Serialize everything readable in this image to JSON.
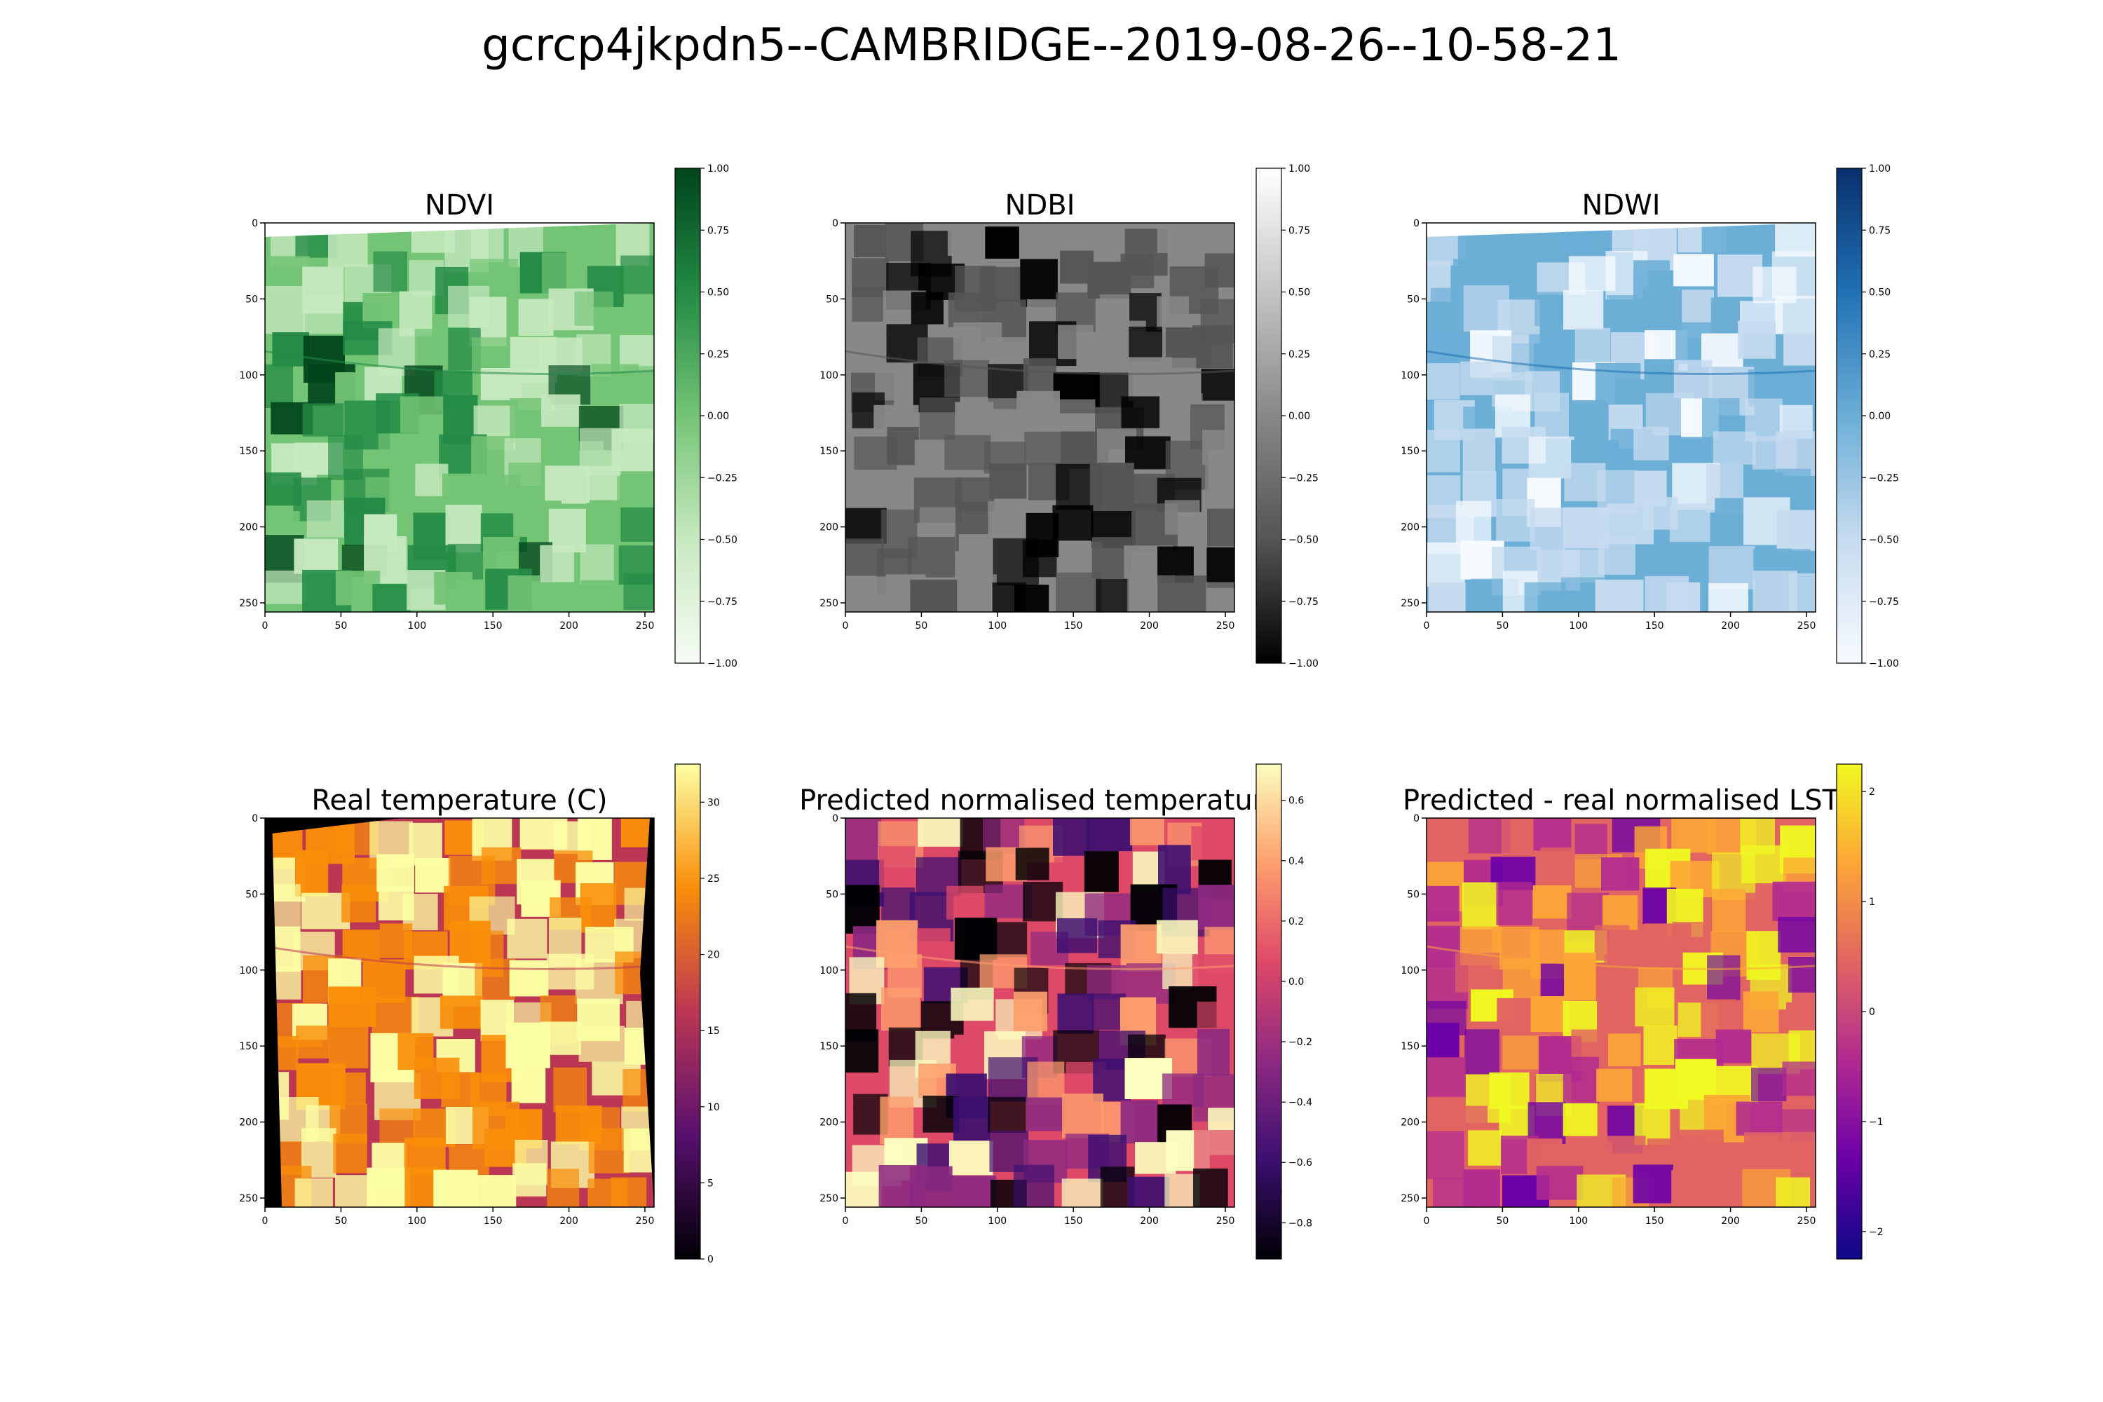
{
  "figure": {
    "title": "gcrcp4jkpdn5--CAMBRIDGE--2019-08-26--10-58-21"
  },
  "chart_data": [
    {
      "type": "heatmap",
      "title": "NDVI",
      "colormap": "Greens",
      "colors": [
        "#f7fcf5",
        "#c7e9c0",
        "#74c476",
        "#238b45",
        "#00441b"
      ],
      "xlim": [
        0,
        256
      ],
      "ylim": [
        256,
        0
      ],
      "xticks": [
        0,
        50,
        100,
        150,
        200,
        250
      ],
      "yticks": [
        0,
        50,
        100,
        150,
        200,
        250
      ],
      "colorbar": {
        "min": -1.0,
        "max": 1.0,
        "ticks": [
          "1.00",
          "0.75",
          "0.50",
          "0.25",
          "0.00",
          "−0.25",
          "−0.50",
          "−0.75",
          "−1.00"
        ]
      }
    },
    {
      "type": "heatmap",
      "title": "NDBI",
      "colormap": "Greys_r",
      "colors": [
        "#000000",
        "#555555",
        "#888888",
        "#c4c4c4",
        "#ffffff"
      ],
      "xlim": [
        0,
        256
      ],
      "ylim": [
        256,
        0
      ],
      "xticks": [
        0,
        50,
        100,
        150,
        200,
        250
      ],
      "yticks": [
        0,
        50,
        100,
        150,
        200,
        250
      ],
      "colorbar": {
        "min": -1.0,
        "max": 1.0,
        "ticks": [
          "1.00",
          "0.75",
          "0.50",
          "0.25",
          "0.00",
          "−0.25",
          "−0.50",
          "−0.75",
          "−1.00"
        ]
      }
    },
    {
      "type": "heatmap",
      "title": "NDWI",
      "colormap": "Blues",
      "colors": [
        "#f7fbff",
        "#c6dbef",
        "#6baed6",
        "#2171b5",
        "#08306b"
      ],
      "xlim": [
        0,
        256
      ],
      "ylim": [
        256,
        0
      ],
      "xticks": [
        0,
        50,
        100,
        150,
        200,
        250
      ],
      "yticks": [
        0,
        50,
        100,
        150,
        200,
        250
      ],
      "colorbar": {
        "min": -1.0,
        "max": 1.0,
        "ticks": [
          "1.00",
          "0.75",
          "0.50",
          "0.25",
          "0.00",
          "−0.25",
          "−0.50",
          "−0.75",
          "−1.00"
        ]
      }
    },
    {
      "type": "heatmap",
      "title": "Real temperature (C)",
      "colormap": "inferno",
      "colors": [
        "#000004",
        "#57106e",
        "#bc3754",
        "#f98e09",
        "#fcffa4"
      ],
      "xlim": [
        0,
        256
      ],
      "ylim": [
        256,
        0
      ],
      "xticks": [
        0,
        50,
        100,
        150,
        200,
        250
      ],
      "yticks": [
        0,
        50,
        100,
        150,
        200,
        250
      ],
      "colorbar": {
        "min": 0,
        "max": 32.5,
        "ticks": [
          "30",
          "25",
          "20",
          "15",
          "10",
          "5",
          "0"
        ]
      }
    },
    {
      "type": "heatmap",
      "title": "Predicted normalised temperature",
      "colormap": "magma",
      "colors": [
        "#000004",
        "#3b0f70",
        "#8c2981",
        "#de4968",
        "#fe9f6d",
        "#fcfdbf"
      ],
      "xlim": [
        0,
        256
      ],
      "ylim": [
        256,
        0
      ],
      "xticks": [
        0,
        50,
        100,
        150,
        200,
        250
      ],
      "yticks": [
        0,
        50,
        100,
        150,
        200,
        250
      ],
      "colorbar": {
        "min": -0.92,
        "max": 0.72,
        "ticks": [
          "0.6",
          "0.4",
          "0.2",
          "0.0",
          "−0.2",
          "−0.4",
          "−0.6",
          "−0.8"
        ]
      }
    },
    {
      "type": "heatmap",
      "title": "Predicted - real normalised LST",
      "colormap": "plasma",
      "colors": [
        "#0d0887",
        "#6a00a8",
        "#b12a90",
        "#e16462",
        "#fca636",
        "#f0f921"
      ],
      "xlim": [
        0,
        256
      ],
      "ylim": [
        256,
        0
      ],
      "xticks": [
        0,
        50,
        100,
        150,
        200,
        250
      ],
      "yticks": [
        0,
        50,
        100,
        150,
        200,
        250
      ],
      "colorbar": {
        "min": -2.25,
        "max": 2.25,
        "ticks": [
          "2",
          "1",
          "0",
          "−1",
          "−2"
        ]
      }
    }
  ]
}
